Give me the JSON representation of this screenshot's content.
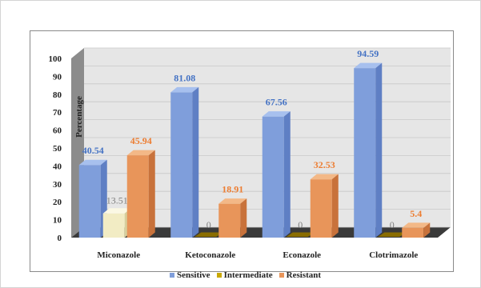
{
  "chart_data": {
    "type": "bar",
    "categories": [
      "Miconazole",
      "Ketoconazole",
      "Econazole",
      "Clotrimazole"
    ],
    "series": [
      {
        "name": "Sensitive",
        "values": [
          40.54,
          81.08,
          67.56,
          94.59
        ],
        "labels": [
          "40.54",
          "81.08",
          "67.56",
          "94.59"
        ],
        "color": "#7f9edb",
        "top": "#a7c0ee",
        "side": "#5f7fc4",
        "label_color": "#4472c4"
      },
      {
        "name": "Intermediate",
        "values": [
          13.51,
          0,
          0,
          0
        ],
        "labels": [
          "13.51",
          "0",
          "0",
          "0"
        ],
        "color": "#f2ecc4",
        "top": "#fbf8e4",
        "side": "#d7cf9c",
        "label_color": "#7f7f7f"
      },
      {
        "name": "Resistant",
        "values": [
          45.94,
          18.91,
          32.53,
          5.4
        ],
        "labels": [
          "45.94",
          "18.91",
          "32.53",
          "5.4"
        ],
        "color": "#e8955a",
        "top": "#f3b887",
        "side": "#c8723b",
        "label_color": "#ed7d31"
      }
    ],
    "ylabel": "Percentage",
    "ylim": [
      0,
      100
    ],
    "yticks": [
      0,
      10,
      20,
      30,
      40,
      50,
      60,
      70,
      80,
      90,
      100
    ],
    "grid": true,
    "legend": "bottom"
  },
  "colors": {
    "floor": "#3a3a3a",
    "wall": "#e6e6e6",
    "zero_marker": "#8a6d00",
    "legend_intermediate": "#c9a800"
  }
}
